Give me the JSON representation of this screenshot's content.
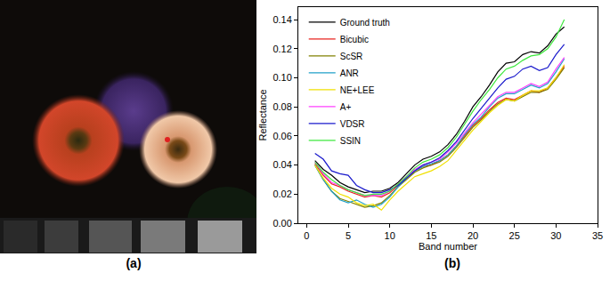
{
  "panel_labels": [
    "(a)",
    "(b)"
  ],
  "chart_data": {
    "type": "line",
    "x_label": "Band number",
    "y_label": "Reflectance",
    "x": [
      1,
      2,
      3,
      4,
      5,
      6,
      7,
      8,
      9,
      10,
      11,
      12,
      13,
      14,
      15,
      16,
      17,
      18,
      19,
      20,
      21,
      22,
      23,
      24,
      25,
      26,
      27,
      28,
      29,
      30,
      31
    ],
    "xlim": [
      -1,
      35
    ],
    "xticks": [
      0,
      5,
      10,
      15,
      20,
      25,
      30,
      35
    ],
    "ylim": [
      0,
      0.1486
    ],
    "yticks": [
      {
        "value": 0,
        "label": "0.00"
      },
      {
        "value": 0.02,
        "label": "0.02"
      },
      {
        "value": 0.04,
        "label": "0.04"
      },
      {
        "value": 0.06,
        "label": "0.06"
      },
      {
        "value": 0.08,
        "label": "0.08"
      },
      {
        "value": 0.1,
        "label": "0.10"
      },
      {
        "value": 0.12,
        "label": "0.12"
      },
      {
        "value": 0.14,
        "label": "0.14"
      }
    ],
    "grid": false,
    "legend": "upper left",
    "series": [
      {
        "name": "Ground truth",
        "color": "#000000",
        "values": [
          0.043,
          0.037,
          0.033,
          0.028,
          0.025,
          0.023,
          0.021,
          0.022,
          0.022,
          0.024,
          0.028,
          0.034,
          0.04,
          0.044,
          0.046,
          0.049,
          0.054,
          0.061,
          0.07,
          0.08,
          0.087,
          0.095,
          0.104,
          0.11,
          0.111,
          0.116,
          0.118,
          0.117,
          0.122,
          0.13,
          0.135
        ]
      },
      {
        "name": "Bicubic",
        "color": "#e8231e",
        "values": [
          0.041,
          0.033,
          0.027,
          0.025,
          0.022,
          0.02,
          0.018,
          0.019,
          0.018,
          0.021,
          0.026,
          0.031,
          0.036,
          0.039,
          0.04,
          0.043,
          0.047,
          0.053,
          0.06,
          0.067,
          0.072,
          0.078,
          0.083,
          0.086,
          0.085,
          0.088,
          0.091,
          0.09,
          0.093,
          0.1,
          0.108
        ]
      },
      {
        "name": "ScSR",
        "color": "#808000",
        "values": [
          0.04,
          0.03,
          0.022,
          0.017,
          0.015,
          0.013,
          0.011,
          0.012,
          0.014,
          0.019,
          0.025,
          0.03,
          0.035,
          0.038,
          0.04,
          0.042,
          0.046,
          0.052,
          0.059,
          0.066,
          0.071,
          0.077,
          0.082,
          0.085,
          0.084,
          0.087,
          0.09,
          0.09,
          0.092,
          0.099,
          0.107
        ]
      },
      {
        "name": "ANR",
        "color": "#1fa0c8",
        "values": [
          0.04,
          0.03,
          0.022,
          0.016,
          0.014,
          0.016,
          0.013,
          0.011,
          0.013,
          0.018,
          0.025,
          0.031,
          0.036,
          0.039,
          0.041,
          0.043,
          0.047,
          0.053,
          0.061,
          0.068,
          0.073,
          0.08,
          0.086,
          0.089,
          0.089,
          0.092,
          0.095,
          0.093,
          0.096,
          0.104,
          0.113
        ]
      },
      {
        "name": "NE+LEE",
        "color": "#f0e000",
        "values": [
          0.04,
          0.031,
          0.024,
          0.02,
          0.018,
          0.014,
          0.012,
          0.013,
          0.009,
          0.016,
          0.022,
          0.027,
          0.032,
          0.034,
          0.036,
          0.039,
          0.043,
          0.05,
          0.057,
          0.064,
          0.07,
          0.076,
          0.081,
          0.085,
          0.084,
          0.088,
          0.091,
          0.091,
          0.093,
          0.1,
          0.109
        ]
      },
      {
        "name": "A+",
        "color": "#ff40ff",
        "values": [
          0.042,
          0.034,
          0.028,
          0.026,
          0.023,
          0.021,
          0.019,
          0.019,
          0.019,
          0.022,
          0.027,
          0.032,
          0.037,
          0.04,
          0.042,
          0.044,
          0.049,
          0.055,
          0.062,
          0.069,
          0.075,
          0.081,
          0.087,
          0.09,
          0.09,
          0.093,
          0.096,
          0.094,
          0.097,
          0.106,
          0.114
        ]
      },
      {
        "name": "VDSR",
        "color": "#1a1acc",
        "values": [
          0.048,
          0.044,
          0.036,
          0.034,
          0.033,
          0.026,
          0.023,
          0.021,
          0.021,
          0.023,
          0.026,
          0.031,
          0.036,
          0.04,
          0.042,
          0.045,
          0.05,
          0.056,
          0.064,
          0.072,
          0.079,
          0.086,
          0.093,
          0.099,
          0.101,
          0.106,
          0.108,
          0.105,
          0.107,
          0.116,
          0.123
        ]
      },
      {
        "name": "SSIN",
        "color": "#3ee83e",
        "values": [
          0.042,
          0.035,
          0.03,
          0.026,
          0.023,
          0.021,
          0.019,
          0.02,
          0.02,
          0.022,
          0.027,
          0.032,
          0.038,
          0.042,
          0.044,
          0.047,
          0.052,
          0.059,
          0.068,
          0.077,
          0.085,
          0.092,
          0.1,
          0.106,
          0.108,
          0.112,
          0.115,
          0.116,
          0.12,
          0.128,
          0.14
        ]
      }
    ]
  }
}
